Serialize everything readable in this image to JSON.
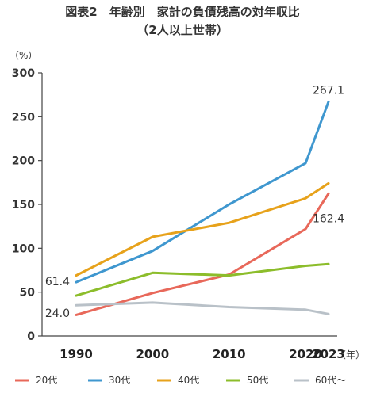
{
  "chart_data": {
    "type": "line",
    "title": "図表2　年齢別　家計の負債残高の対年収比",
    "subtitle": "（2人以上世帯）",
    "ylabel": "（%）",
    "xlabel_suffix": "（年）",
    "x": [
      1990,
      2000,
      2010,
      2020,
      2023
    ],
    "x_tick_labels": [
      "1990",
      "2000",
      "2010",
      "2020",
      "2023"
    ],
    "ylim": [
      0,
      300
    ],
    "y_ticks": [
      0,
      50,
      100,
      150,
      200,
      250,
      300
    ],
    "grid": false,
    "legend_position": "bottom",
    "series": [
      {
        "name": "20代",
        "color": "#e8685a",
        "values": [
          24.0,
          49,
          70,
          122,
          162.4
        ]
      },
      {
        "name": "30代",
        "color": "#3f97cf",
        "values": [
          61.4,
          97,
          150,
          197,
          267.1
        ]
      },
      {
        "name": "40代",
        "color": "#e7a21b",
        "values": [
          69,
          113,
          129,
          157,
          174
        ]
      },
      {
        "name": "50代",
        "color": "#8cbd2b",
        "values": [
          46,
          72,
          69,
          80,
          82
        ]
      },
      {
        "name": "60代〜",
        "color": "#b9c1c8",
        "values": [
          35,
          38,
          33,
          30,
          25
        ]
      }
    ],
    "annotations": [
      {
        "text": "267.1",
        "series": 1,
        "point": 4
      },
      {
        "text": "162.4",
        "series": 0,
        "point": 4
      },
      {
        "text": "61.4",
        "series": 1,
        "point": 0
      },
      {
        "text": "24.0",
        "series": 0,
        "point": 0
      }
    ]
  }
}
